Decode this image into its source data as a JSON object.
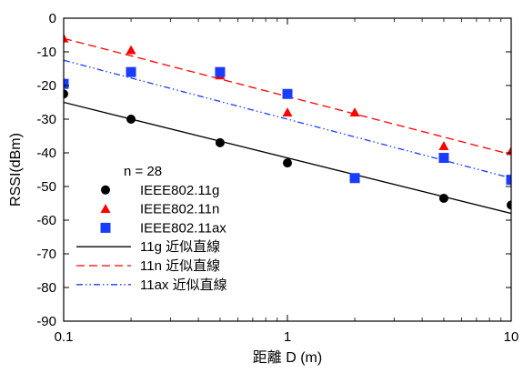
{
  "chart_data": {
    "type": "scatter",
    "xlabel": "距離 D (m)",
    "ylabel": "RSSI(dBm)",
    "x_scale": "log",
    "xlim": [
      0.1,
      10
    ],
    "ylim": [
      -90,
      0
    ],
    "x_ticks": [
      0.1,
      1,
      10
    ],
    "x_tick_labels": [
      "0.1",
      "1",
      "10"
    ],
    "y_ticks": [
      0,
      -10,
      -20,
      -30,
      -40,
      -50,
      -60,
      -70,
      -80,
      -90
    ],
    "y_tick_labels": [
      "0",
      "-10",
      "-20",
      "-30",
      "-40",
      "-50",
      "-60",
      "-70",
      "-80",
      "-90"
    ],
    "grid": false,
    "legend_position": "lower-left",
    "legend_header": "n = 28",
    "series": [
      {
        "name": "IEEE802.11g",
        "kind": "points",
        "marker": "circle",
        "color": "#000000",
        "x": [
          0.1,
          0.2,
          0.5,
          1,
          2,
          5,
          10
        ],
        "y": [
          -22.5,
          -30,
          -37,
          -43,
          -47.5,
          -53.5,
          -55.5
        ]
      },
      {
        "name": "IEEE802.11n",
        "kind": "points",
        "marker": "triangle",
        "color": "#ff0000",
        "x": [
          0.1,
          0.2,
          0.5,
          1,
          2,
          5,
          10
        ],
        "y": [
          -6,
          -9.5,
          -17,
          -28,
          -28,
          -38,
          -39.5
        ]
      },
      {
        "name": "IEEE802.11ax",
        "kind": "points",
        "marker": "square",
        "color": "#1a3cff",
        "x": [
          0.1,
          0.2,
          0.5,
          1,
          2,
          5,
          10
        ],
        "y": [
          -19.5,
          -16,
          -16,
          -22.5,
          -47.5,
          -41.5,
          -48
        ]
      },
      {
        "name": "11g 近似直線",
        "kind": "line",
        "dash": "solid",
        "color": "#000000",
        "x": [
          0.1,
          10
        ],
        "y": [
          -25,
          -58
        ]
      },
      {
        "name": "11n 近似直線",
        "kind": "line",
        "dash": "dashed",
        "color": "#ff0000",
        "x": [
          0.1,
          10
        ],
        "y": [
          -6,
          -40.5
        ]
      },
      {
        "name": "11ax 近似直線",
        "kind": "line",
        "dash": "dashdotdot",
        "color": "#1a3cff",
        "x": [
          0.1,
          10
        ],
        "y": [
          -12.5,
          -47.5
        ]
      }
    ]
  }
}
